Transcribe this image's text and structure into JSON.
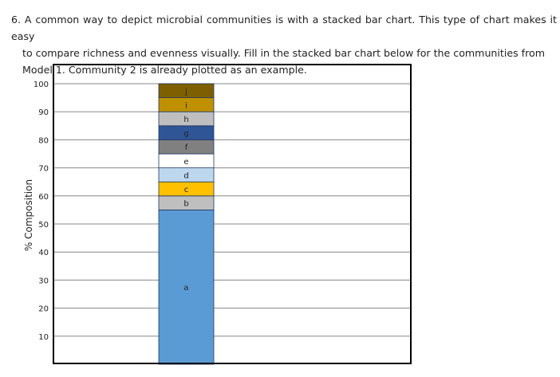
{
  "question": {
    "number": "6.",
    "line1": "A common way to depict microbial communities is with a stacked bar chart. This type of chart makes it easy",
    "line2": "to compare richness and evenness visually. Fill in the stacked bar chart below for the communities from",
    "line3": "Model 1. Community 2 is already plotted as an example."
  },
  "chart_data": {
    "type": "bar",
    "stacked": true,
    "ylabel": "% Composition",
    "ylim": [
      0,
      100
    ],
    "yticks": [
      10,
      20,
      30,
      40,
      50,
      60,
      70,
      80,
      90,
      100
    ],
    "grid": true,
    "segments": [
      {
        "label": "a",
        "value": 55,
        "color": "#5b9bd5"
      },
      {
        "label": "b",
        "value": 5,
        "color": "#bfbfbf"
      },
      {
        "label": "c",
        "value": 5,
        "color": "#ffc000"
      },
      {
        "label": "d",
        "value": 5,
        "color": "#bdd7ee"
      },
      {
        "label": "e",
        "value": 5,
        "color": "#ffffff"
      },
      {
        "label": "f",
        "value": 5,
        "color": "#808080"
      },
      {
        "label": "g",
        "value": 5,
        "color": "#2f5597"
      },
      {
        "label": "h",
        "value": 5,
        "color": "#bfbfbf"
      },
      {
        "label": "i",
        "value": 5,
        "color": "#bf9000"
      },
      {
        "label": "j",
        "value": 5,
        "color": "#7f6000"
      }
    ]
  }
}
